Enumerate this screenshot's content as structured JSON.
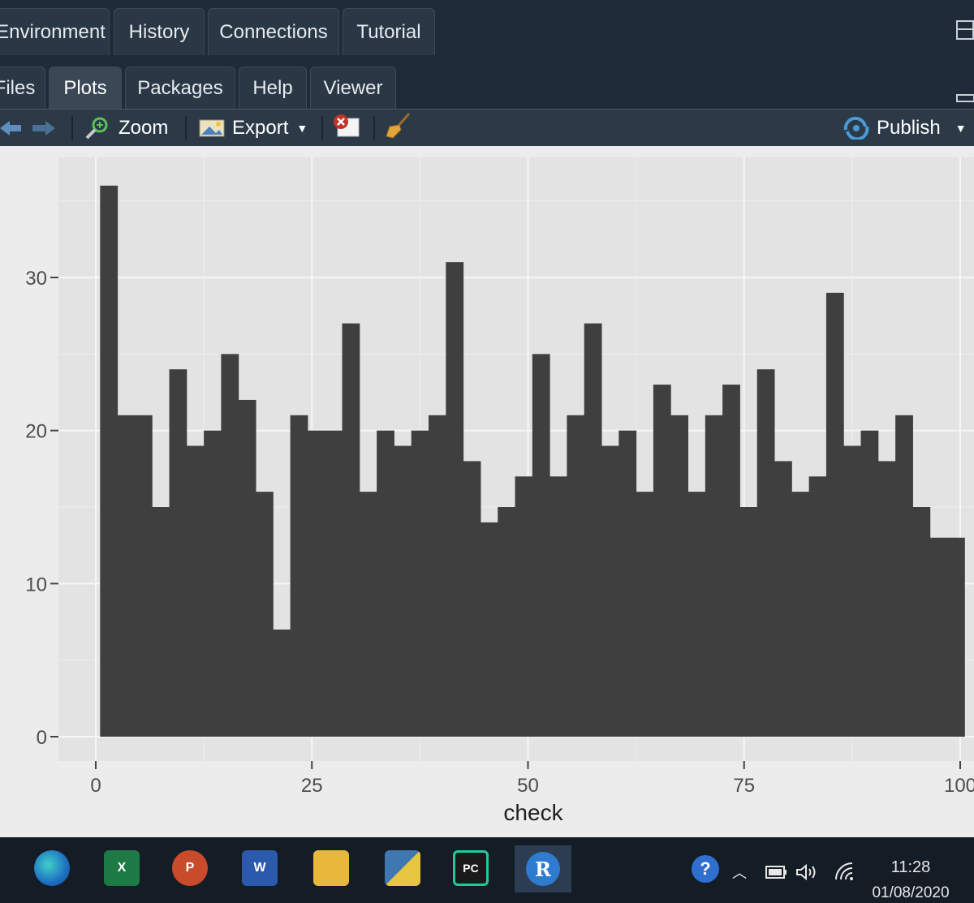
{
  "top_tabs": [
    "Environment",
    "History",
    "Connections",
    "Tutorial"
  ],
  "pane_tabs": [
    "Files",
    "Plots",
    "Packages",
    "Help",
    "Viewer"
  ],
  "active_pane_tab": "Plots",
  "toolbar": {
    "zoom_label": "Zoom",
    "export_label": "Export",
    "publish_label": "Publish"
  },
  "taskbar": {
    "time": "11:28",
    "date": "01/08/2020",
    "apps": [
      "edge-icon",
      "excel-icon",
      "powerpoint-icon",
      "word-icon",
      "file-explorer-icon",
      "python-icon",
      "pycharm-icon",
      "r-icon"
    ]
  },
  "chart_data": {
    "type": "bar",
    "title": "",
    "xlabel": "check",
    "ylabel": "",
    "xlim": [
      0,
      100
    ],
    "ylim": [
      0,
      37
    ],
    "xticks": [
      0,
      25,
      50,
      75,
      100
    ],
    "yticks": [
      0,
      10,
      20,
      30
    ],
    "grid": true,
    "x": [
      2.0,
      4.0,
      6.0,
      8.0,
      10.0,
      12.0,
      14.0,
      16.0,
      18.0,
      20.0,
      22.0,
      24.0,
      26.0,
      28.0,
      30.0,
      32.0,
      34.0,
      36.0,
      38.0,
      40.0,
      42.0,
      44.0,
      46.0,
      48.0,
      50.0,
      52.0,
      54.0,
      56.0,
      58.0,
      60.0,
      62.0,
      64.0,
      66.0,
      68.0,
      70.0,
      72.0,
      74.0,
      76.0,
      78.0,
      80.0,
      82.0,
      84.0,
      86.0,
      88.0,
      90.0,
      92.0,
      94.0,
      96.0,
      98.0,
      100.0
    ],
    "values": [
      36,
      21,
      21,
      15,
      24,
      19,
      20,
      25,
      22,
      16,
      7,
      21,
      20,
      20,
      27,
      16,
      20,
      19,
      20,
      21,
      31,
      18,
      14,
      15,
      17,
      25,
      17,
      21,
      27,
      19,
      20,
      16,
      23,
      21,
      16,
      21,
      23,
      15,
      24,
      18,
      16,
      17,
      29,
      19,
      20,
      18,
      21,
      15,
      13,
      13
    ]
  }
}
